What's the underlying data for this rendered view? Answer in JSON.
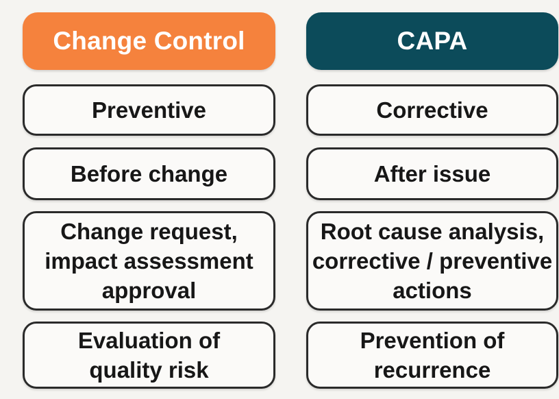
{
  "diagram": {
    "background_color": "#F5F4F1",
    "box_fill_color": "#FBFAF8",
    "box_border_color": "#2A2A2A",
    "text_color": "#171717"
  },
  "columns": [
    {
      "header": {
        "label": "Change Control",
        "color": "#F5823D",
        "text_color": "#FFFFFF"
      },
      "cells": [
        {
          "lines": [
            "Preventive"
          ]
        },
        {
          "lines": [
            "Before change"
          ]
        },
        {
          "lines": [
            "Change request,",
            "impact assessment",
            "approval"
          ]
        },
        {
          "lines": [
            "Evaluation of",
            "quality risk"
          ]
        }
      ]
    },
    {
      "header": {
        "label": "CAPA",
        "color": "#0C4B5A",
        "text_color": "#FFFFFF"
      },
      "cells": [
        {
          "lines": [
            "Corrective"
          ]
        },
        {
          "lines": [
            "After issue"
          ]
        },
        {
          "lines": [
            "Root cause analysis,",
            "corrective / preventive",
            "actions"
          ]
        },
        {
          "lines": [
            "Prevention of",
            "recurrence"
          ]
        }
      ]
    }
  ]
}
